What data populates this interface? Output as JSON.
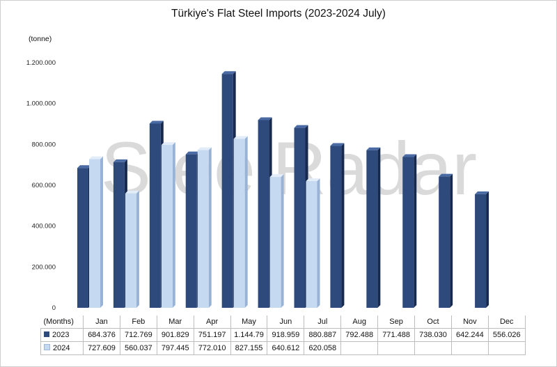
{
  "title": "Türkiye's Flat Steel Imports (2023-2024 July)",
  "unit_label": "(tonne)",
  "watermark": "SteelRadar",
  "table": {
    "header_label": "(Months)",
    "rows": [
      {
        "legend": "2023",
        "cells": [
          "684.376",
          "712.769",
          "901.829",
          "751.197",
          "1.144.79",
          "918.959",
          "880.887",
          "792.488",
          "771.488",
          "738.030",
          "642.244",
          "556.026"
        ]
      },
      {
        "legend": "2024",
        "cells": [
          "727.609",
          "560.037",
          "797.445",
          "772.010",
          "827.155",
          "640.612",
          "620.058",
          "",
          "",
          "",
          "",
          ""
        ]
      }
    ]
  },
  "colors": {
    "series_2023": "#2e4a7d",
    "series_2024": "#c5d9f1"
  },
  "chart_data": {
    "type": "bar",
    "title": "Türkiye's Flat Steel Imports (2023-2024 July)",
    "ylabel": "(tonne)",
    "xlabel": "(Months)",
    "ylim": [
      0,
      1200000
    ],
    "y_ticks": [
      0,
      200000,
      400000,
      600000,
      800000,
      1000000,
      1200000
    ],
    "y_tick_labels": [
      "0",
      "200.000",
      "400.000",
      "600.000",
      "800.000",
      "1.000.000",
      "1.200.000"
    ],
    "grid": false,
    "legend": "in data table",
    "categories": [
      "Jan",
      "Feb",
      "Mar",
      "Apr",
      "May",
      "Jun",
      "Jul",
      "Aug",
      "Sep",
      "Oct",
      "Nov",
      "Dec"
    ],
    "series": [
      {
        "name": "2023",
        "values": [
          684376,
          712769,
          901829,
          751197,
          1144790,
          918959,
          880887,
          792488,
          771488,
          738030,
          642244,
          556026
        ]
      },
      {
        "name": "2024",
        "values": [
          727609,
          560037,
          797445,
          772010,
          827155,
          640612,
          620058,
          null,
          null,
          null,
          null,
          null
        ]
      }
    ]
  }
}
